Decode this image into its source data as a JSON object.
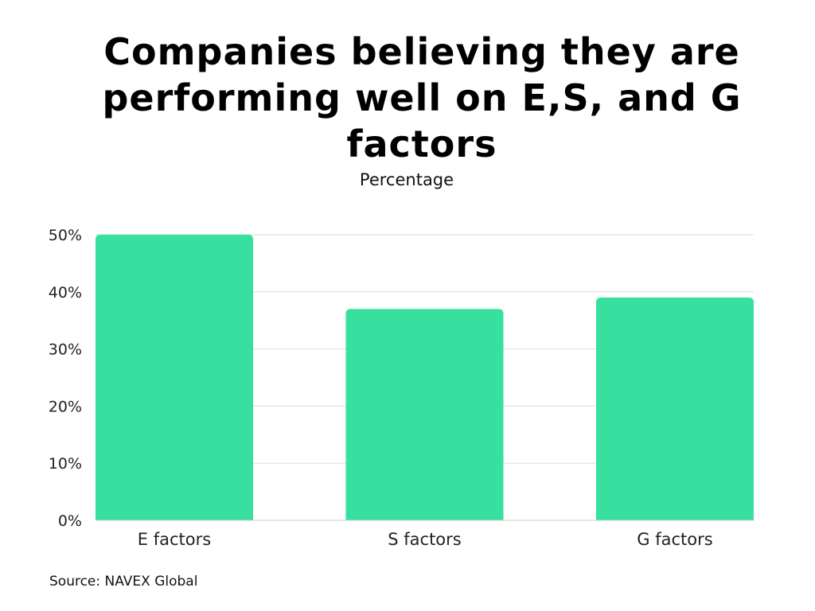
{
  "chart_data": {
    "type": "bar",
    "title": "Companies believing they are performing well on E,S, and G factors",
    "subtitle": "Percentage",
    "categories": [
      "E factors",
      "S factors",
      "G factors"
    ],
    "values": [
      50,
      37,
      39
    ],
    "ylim": [
      0,
      50
    ],
    "y_ticks": [
      0,
      10,
      20,
      30,
      40,
      50
    ],
    "y_tick_labels": [
      "0%",
      "10%",
      "20%",
      "30%",
      "40%",
      "50%"
    ],
    "grid": true,
    "bar_color": "#38e09f",
    "grid_color": "#dddddd"
  },
  "source": "Source: NAVEX Global"
}
